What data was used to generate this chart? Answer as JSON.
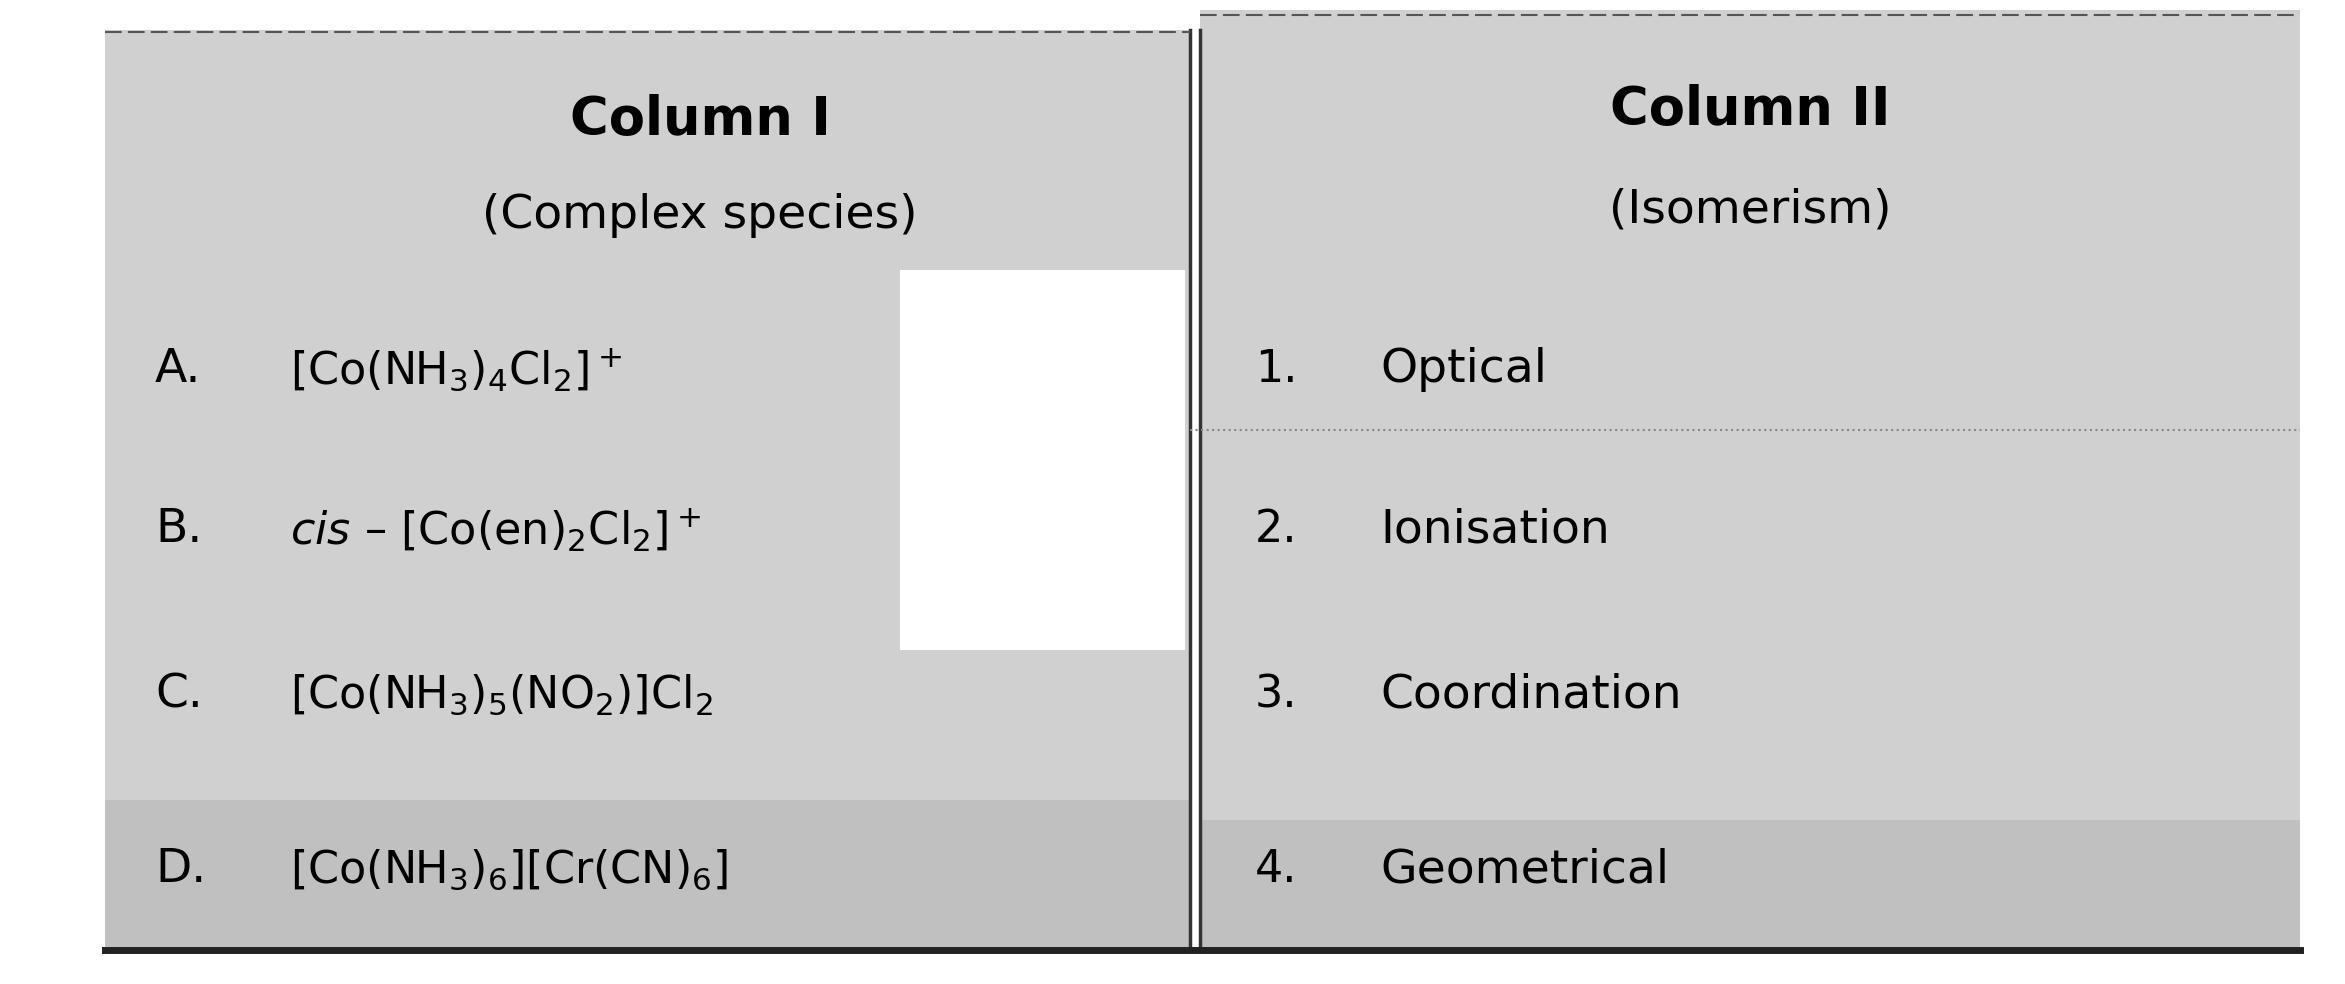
{
  "bg_color": "#ffffff",
  "page_color": "#d0d0d0",
  "page_color_dark": "#c0c0c0",
  "col1_header": "Column I",
  "col1_subheader": "(Complex species)",
  "col2_header": "Column II",
  "col2_subheader": "(Isomerism)",
  "col1_items": [
    {
      "label": "A.",
      "formula": "[Co(NH$_3$)$_4$Cl$_2$]$^+$"
    },
    {
      "label": "B.",
      "formula": "$cis$ – [Co(en)$_2$Cl$_2$]$^+$"
    },
    {
      "label": "C.",
      "formula": "[Co(NH$_3$)$_5$(NO$_2$)]Cl$_2$"
    },
    {
      "label": "D.",
      "formula": "[Co(NH$_3$)$_6$][Cr(CN)$_6$]"
    }
  ],
  "col2_items": [
    {
      "number": "1.",
      "text": "Optical"
    },
    {
      "number": "2.",
      "text": "Ionisation"
    },
    {
      "number": "3.",
      "text": "Coordination"
    },
    {
      "number": "4.",
      "text": "Geometrical"
    }
  ],
  "header_fontsize": 38,
  "subheader_fontsize": 34,
  "label_fontsize": 34,
  "formula_fontsize": 32,
  "number_fontsize": 32,
  "isomer_fontsize": 34
}
